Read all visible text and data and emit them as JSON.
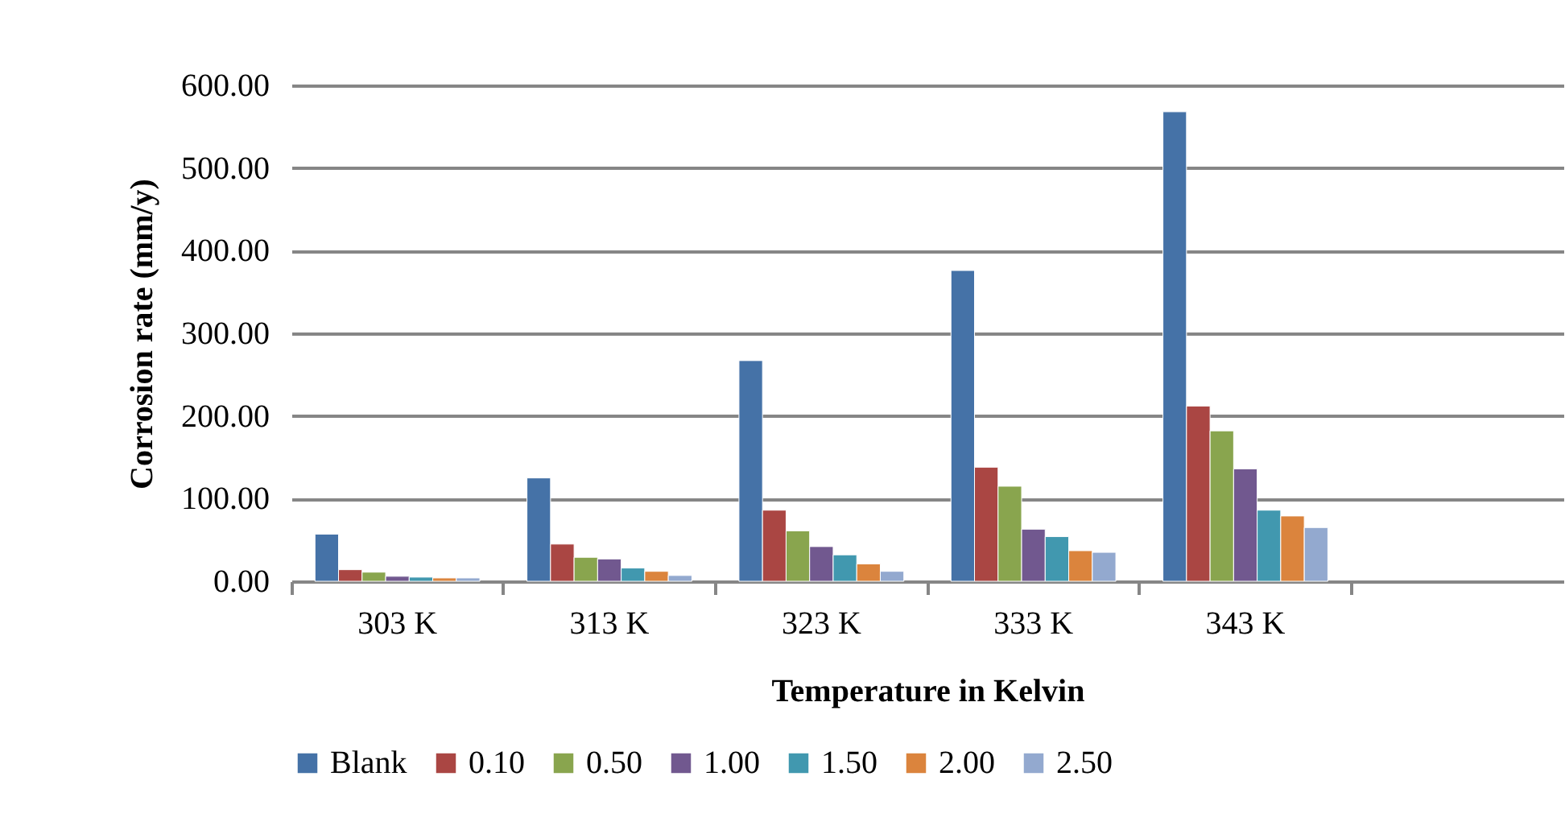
{
  "chart_data": {
    "type": "bar",
    "xlabel": "Temperature in Kelvin",
    "ylabel": "Corrosion rate (mm/y)",
    "categories": [
      "303 K",
      "313 K",
      "323 K",
      "333 K",
      "343 K",
      null
    ],
    "series": [
      {
        "name": "Blank",
        "color": "#4572a7",
        "values": [
          57,
          125,
          267,
          376,
          568,
          null
        ]
      },
      {
        "name": "0.10",
        "color": "#aa4643",
        "values": [
          14,
          45,
          86,
          138,
          212,
          null
        ]
      },
      {
        "name": "0.50",
        "color": "#89a54e",
        "values": [
          11,
          29,
          61,
          115,
          182,
          null
        ]
      },
      {
        "name": "1.00",
        "color": "#71588f",
        "values": [
          6,
          27,
          42,
          63,
          136,
          null
        ]
      },
      {
        "name": "1.50",
        "color": "#4198af",
        "values": [
          5,
          16,
          32,
          54,
          86,
          null
        ]
      },
      {
        "name": "2.00",
        "color": "#db843d",
        "values": [
          4,
          12,
          21,
          37,
          79,
          null
        ]
      },
      {
        "name": "2.50",
        "color": "#93a9cf",
        "values": [
          4,
          7,
          12,
          35,
          65,
          null
        ]
      }
    ],
    "ylim": [
      0,
      600
    ],
    "yticks": [
      {
        "value": 0,
        "label": "0.00"
      },
      {
        "value": 100,
        "label": "100.00"
      },
      {
        "value": 200,
        "label": "200.00"
      },
      {
        "value": 300,
        "label": "300.00"
      },
      {
        "value": 400,
        "label": "400.00"
      },
      {
        "value": 500,
        "label": "500.00"
      },
      {
        "value": 600,
        "label": "600.00"
      }
    ],
    "grid": "y",
    "legend": "bottom"
  }
}
